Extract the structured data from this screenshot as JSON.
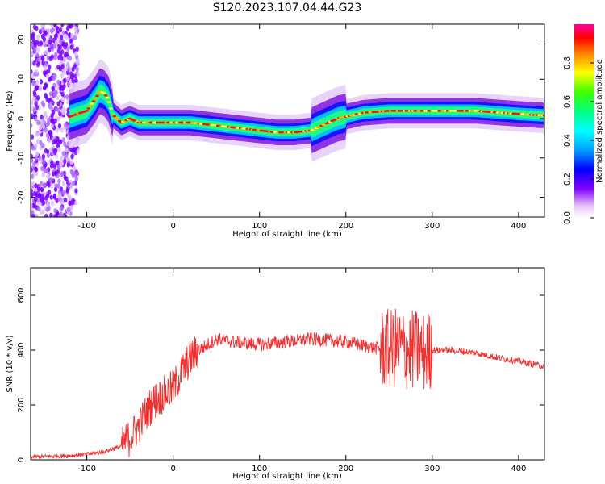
{
  "title": "S120.2023.107.04.44.G23",
  "chart_data": [
    {
      "type": "heatmap",
      "xlabel": "Height of straight line (km)",
      "ylabel": "Frequency (Hz)",
      "xlim": [
        -165,
        430
      ],
      "ylim": [
        -25,
        24
      ],
      "xticks": [
        -100,
        0,
        100,
        200,
        300,
        400
      ],
      "yticks": [
        -20,
        -10,
        0,
        10,
        20
      ],
      "colorbar": {
        "label": "Normalized spectral amplitude",
        "range": [
          0.0,
          1.0
        ],
        "ticks": [
          0.0,
          0.2,
          0.4,
          0.6,
          0.8
        ],
        "tick_labels": [
          "0.0",
          "0.2",
          "0.4",
          "0.6",
          "0.8"
        ]
      },
      "ridge": {
        "x": [
          -120,
          -100,
          -90,
          -85,
          -80,
          -75,
          -70,
          -60,
          -50,
          -40,
          -20,
          0,
          20,
          40,
          60,
          80,
          100,
          120,
          140,
          160,
          170,
          180,
          190,
          200,
          220,
          250,
          300,
          350,
          400,
          430
        ],
        "y": [
          0.5,
          2,
          5,
          7,
          6.5,
          5,
          1,
          -1,
          0,
          -1,
          -1,
          -1,
          -1,
          -1.5,
          -2,
          -2.5,
          -3,
          -3.5,
          -3.5,
          -3,
          -2,
          -1,
          0,
          0.5,
          1.5,
          2,
          2,
          2,
          1.2,
          0.8
        ]
      }
    },
    {
      "type": "line",
      "xlabel": "Height of straight line (km)",
      "ylabel": "SNR (10 * v/v)",
      "xlim": [
        -165,
        430
      ],
      "ylim": [
        0,
        700
      ],
      "xticks": [
        -100,
        0,
        100,
        200,
        300,
        400
      ],
      "yticks": [
        0,
        200,
        400,
        600
      ],
      "series": [
        {
          "color": "#f03030",
          "x": [
            -165,
            -120,
            -100,
            -80,
            -60,
            -50,
            -40,
            -30,
            -20,
            -10,
            0,
            10,
            20,
            30,
            50,
            70,
            100,
            130,
            160,
            200,
            230,
            250,
            260,
            270,
            280,
            290,
            300,
            320,
            350,
            380,
            400,
            430
          ],
          "y": [
            10,
            15,
            20,
            30,
            50,
            80,
            120,
            180,
            220,
            240,
            260,
            320,
            370,
            400,
            440,
            430,
            420,
            430,
            440,
            430,
            410,
            400,
            410,
            400,
            400,
            390,
            400,
            400,
            390,
            370,
            360,
            340
          ]
        }
      ]
    }
  ]
}
